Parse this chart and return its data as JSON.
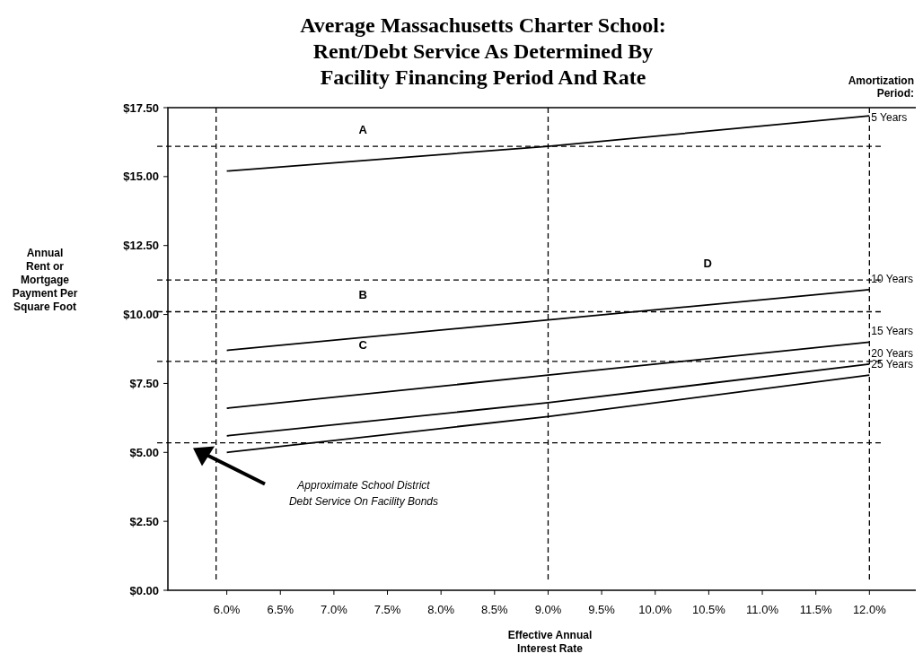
{
  "chart_data": {
    "type": "line",
    "title": "Average Massachusetts Charter School:\nRent/Debt Service As Determined By\nFacility Financing Period And Rate",
    "xlabel": "Effective Annual\nInterest Rate",
    "ylabel": "Annual\nRent or\nMortgage\nPayment Per\nSquare Foot",
    "legend_title": "Amortization\nPeriod:",
    "x": [
      6.0,
      9.0,
      12.0
    ],
    "series": [
      {
        "name": "5 Years",
        "color": "#000000",
        "values": [
          15.2,
          16.1,
          17.2
        ]
      },
      {
        "name": "10 Years",
        "color": "#000000",
        "values": [
          8.7,
          9.8,
          10.9
        ]
      },
      {
        "name": "15 Years",
        "color": "#000000",
        "values": [
          6.6,
          7.8,
          9.0
        ]
      },
      {
        "name": "20 Years",
        "color": "#000000",
        "values": [
          5.6,
          6.8,
          8.2
        ]
      },
      {
        "name": "25 Years",
        "color": "#000000",
        "values": [
          5.0,
          6.3,
          7.8
        ]
      }
    ],
    "xlim": [
      5.45,
      12.45
    ],
    "ylim": [
      0,
      17.5
    ],
    "xticks": [
      {
        "value": 6,
        "label": "6.0%"
      },
      {
        "value": 6.5,
        "label": "6.5%"
      },
      {
        "value": 7,
        "label": "7.0%"
      },
      {
        "value": 7.5,
        "label": "7.5%"
      },
      {
        "value": 8,
        "label": "8.0%"
      },
      {
        "value": 8.5,
        "label": "8.5%"
      },
      {
        "value": 9,
        "label": "9.0%"
      },
      {
        "value": 9.5,
        "label": "9.5%"
      },
      {
        "value": 10,
        "label": "10.0%"
      },
      {
        "value": 10.5,
        "label": "10.5%"
      },
      {
        "value": 11,
        "label": "11.0%"
      },
      {
        "value": 11.5,
        "label": "11.5%"
      },
      {
        "value": 12,
        "label": "12.0%"
      }
    ],
    "yticks": [
      {
        "value": 0,
        "label": "$0.00"
      },
      {
        "value": 2.5,
        "label": "$2.50"
      },
      {
        "value": 5,
        "label": "$5.00"
      },
      {
        "value": 7.5,
        "label": "$7.50"
      },
      {
        "value": 10,
        "label": "$10.00"
      },
      {
        "value": 12.5,
        "label": "$12.50"
      },
      {
        "value": 15,
        "label": "$15.00"
      },
      {
        "value": 17.5,
        "label": "$17.50"
      }
    ],
    "ref_lines": [
      {
        "axis": "y",
        "value": 16.1,
        "label": "A",
        "line_style": "dashed",
        "color": "#000000"
      },
      {
        "axis": "y",
        "value": 10.1,
        "label": "B",
        "line_style": "dashed",
        "color": "#000000"
      },
      {
        "axis": "y",
        "value": 8.3,
        "label": "C",
        "line_style": "dashed",
        "color": "#000000"
      },
      {
        "axis": "y",
        "value": 11.25,
        "label": "D",
        "line_style": "dashed",
        "color": "#000000"
      },
      {
        "axis": "y",
        "value": 5.35,
        "line_style": "dashed",
        "color": "#000000"
      },
      {
        "axis": "x",
        "value": 5.9,
        "line_style": "dashed",
        "color": "#000000"
      },
      {
        "axis": "x",
        "value": 9.0,
        "line_style": "dashed",
        "color": "#000000"
      },
      {
        "axis": "x",
        "value": 12.0,
        "line_style": "dashed",
        "color": "#000000"
      }
    ],
    "annotations": [
      "Approximate School District\nDebt Service On Facility Bonds"
    ],
    "line_style": "solid",
    "marker": "none",
    "grid": false
  }
}
